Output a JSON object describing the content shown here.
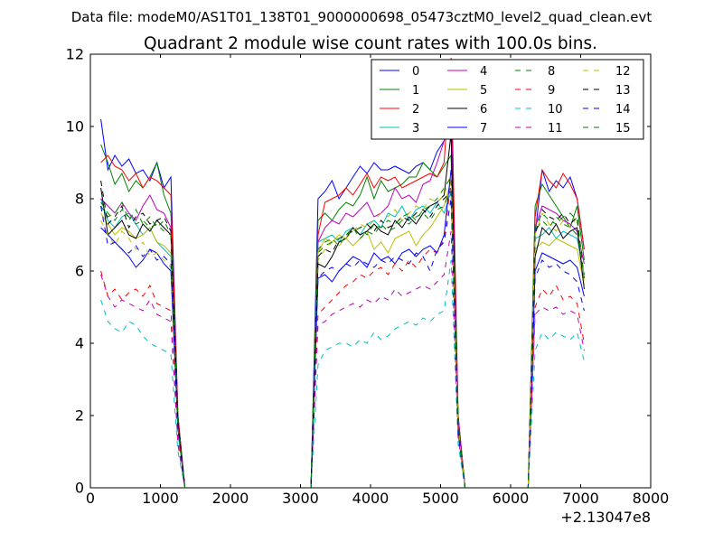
{
  "suptitle": "Data file: modeM0/AS1T01_138T01_9000000698_05473cztM0_level2_quad_clean.evt",
  "chart_data": {
    "type": "line",
    "title": "Quadrant 2 module wise count rates with 100.0s bins.",
    "xlabel": "",
    "ylabel": "",
    "xlim": [
      0,
      8000
    ],
    "ylim": [
      0,
      12
    ],
    "x_offset_label": "+2.13047e8",
    "x_ticks": [
      0,
      1000,
      2000,
      3000,
      4000,
      5000,
      6000,
      7000,
      8000
    ],
    "y_ticks": [
      0,
      2,
      4,
      6,
      8,
      10,
      12
    ],
    "legend_position": "top-right",
    "x": [
      150,
      250,
      350,
      450,
      550,
      650,
      750,
      850,
      950,
      1050,
      1150,
      1250,
      1350,
      1450,
      1550,
      1650,
      1750,
      1850,
      1950,
      2050,
      2150,
      2250,
      2350,
      2450,
      2550,
      2650,
      2750,
      2850,
      2950,
      3050,
      3150,
      3250,
      3350,
      3450,
      3550,
      3650,
      3750,
      3850,
      3950,
      4050,
      4150,
      4250,
      4350,
      4450,
      4550,
      4650,
      4750,
      4850,
      4950,
      5050,
      5150,
      5250,
      5350,
      5450,
      5550,
      5650,
      5750,
      5850,
      5950,
      6050,
      6150,
      6250,
      6350,
      6450,
      6550,
      6650,
      6750,
      6850,
      6950,
      7050
    ],
    "series": [
      {
        "name": "0",
        "color": "#0000ff",
        "style": "solid",
        "values": [
          10.2,
          8.8,
          9.2,
          8.9,
          9.1,
          8.7,
          8.8,
          8.5,
          9.0,
          8.3,
          8.6,
          2.0,
          0,
          0,
          0,
          0,
          0,
          0,
          0,
          0,
          0,
          0,
          0,
          0,
          0,
          0,
          0,
          0,
          0,
          0,
          0,
          8.0,
          8.2,
          8.5,
          8.0,
          8.3,
          8.6,
          8.9,
          8.7,
          9.0,
          8.8,
          8.8,
          8.9,
          8.8,
          8.7,
          8.9,
          9.0,
          8.8,
          9.3,
          9.6,
          10.6,
          2.0,
          0,
          0,
          0,
          0,
          0,
          0,
          0,
          0,
          0,
          0,
          7.0,
          8.8,
          8.2,
          8.5,
          8.3,
          8.6,
          8.0,
          6.6
        ]
      },
      {
        "name": "1",
        "color": "#008000",
        "style": "solid",
        "values": [
          9.5,
          9.0,
          8.4,
          8.7,
          8.2,
          8.5,
          8.3,
          8.6,
          9.0,
          8.1,
          7.6,
          1.8,
          0,
          0,
          0,
          0,
          0,
          0,
          0,
          0,
          0,
          0,
          0,
          0,
          0,
          0,
          0,
          0,
          0,
          0,
          0,
          7.4,
          7.6,
          7.4,
          7.7,
          7.9,
          7.8,
          8.1,
          8.6,
          8.0,
          8.5,
          8.2,
          8.3,
          8.4,
          8.6,
          8.6,
          9.0,
          8.8,
          8.6,
          8.9,
          9.2,
          1.9,
          0,
          0,
          0,
          0,
          0,
          0,
          0,
          0,
          0,
          0,
          7.8,
          8.4,
          8.1,
          7.8,
          7.5,
          7.2,
          7.8,
          6.3
        ]
      },
      {
        "name": "2",
        "color": "#ff0000",
        "style": "solid",
        "values": [
          9.0,
          9.2,
          8.9,
          8.8,
          8.5,
          8.7,
          8.3,
          8.6,
          8.5,
          8.3,
          8.1,
          2.0,
          0,
          0,
          0,
          0,
          0,
          0,
          0,
          0,
          0,
          0,
          0,
          0,
          0,
          0,
          0,
          0,
          0,
          0,
          0,
          7.0,
          7.9,
          8.0,
          8.1,
          8.3,
          8.1,
          8.4,
          8.7,
          8.3,
          8.6,
          8.5,
          8.6,
          8.3,
          8.4,
          8.5,
          8.6,
          8.7,
          8.6,
          9.0,
          11.9,
          2.0,
          0,
          0,
          0,
          0,
          0,
          0,
          0,
          0,
          0,
          0,
          7.5,
          8.8,
          8.5,
          8.3,
          8.7,
          8.4,
          8.0,
          6.6
        ]
      },
      {
        "name": "3",
        "color": "#00bfbf",
        "style": "solid",
        "values": [
          8.0,
          7.4,
          7.2,
          7.5,
          7.6,
          7.3,
          7.0,
          7.2,
          6.8,
          6.6,
          6.4,
          1.7,
          0,
          0,
          0,
          0,
          0,
          0,
          0,
          0,
          0,
          0,
          0,
          0,
          0,
          0,
          0,
          0,
          0,
          0,
          0,
          6.8,
          6.9,
          7.0,
          6.8,
          7.1,
          7.2,
          7.0,
          7.3,
          7.4,
          7.2,
          7.6,
          7.5,
          7.8,
          7.4,
          7.7,
          7.8,
          7.6,
          7.9,
          7.6,
          8.2,
          1.7,
          0,
          0,
          0,
          0,
          0,
          0,
          0,
          0,
          0,
          0,
          6.9,
          7.0,
          7.2,
          6.9,
          7.1,
          7.0,
          6.9,
          5.9
        ]
      },
      {
        "name": "4",
        "color": "#bf00bf",
        "style": "solid",
        "values": [
          8.0,
          7.8,
          7.6,
          7.9,
          7.6,
          7.4,
          7.8,
          8.1,
          7.7,
          7.6,
          7.2,
          1.8,
          0,
          0,
          0,
          0,
          0,
          0,
          0,
          0,
          0,
          0,
          0,
          0,
          0,
          0,
          0,
          0,
          0,
          0,
          0,
          6.8,
          7.2,
          7.4,
          7.3,
          7.6,
          7.5,
          7.7,
          7.9,
          7.5,
          7.6,
          7.8,
          8.3,
          8.0,
          8.1,
          7.9,
          8.4,
          8.5,
          9.0,
          9.6,
          10.4,
          2.0,
          0,
          0,
          0,
          0,
          0,
          0,
          0,
          0,
          0,
          0,
          7.2,
          7.8,
          7.7,
          7.6,
          7.4,
          7.3,
          7.1,
          6.2
        ]
      },
      {
        "name": "5",
        "color": "#bfbf00",
        "style": "solid",
        "values": [
          7.6,
          7.3,
          7.0,
          7.2,
          7.1,
          6.9,
          7.0,
          7.2,
          6.8,
          6.7,
          6.5,
          1.7,
          0,
          0,
          0,
          0,
          0,
          0,
          0,
          0,
          0,
          0,
          0,
          0,
          0,
          0,
          0,
          0,
          0,
          0,
          0,
          6.5,
          6.9,
          6.8,
          7.0,
          6.9,
          6.7,
          6.9,
          7.1,
          6.6,
          6.8,
          6.5,
          6.9,
          7.0,
          7.1,
          6.7,
          7.0,
          7.2,
          7.5,
          7.8,
          8.5,
          1.6,
          0,
          0,
          0,
          0,
          0,
          0,
          0,
          0,
          0,
          0,
          6.6,
          6.8,
          6.7,
          6.9,
          6.8,
          6.7,
          6.6,
          5.6
        ]
      },
      {
        "name": "6",
        "color": "#000000",
        "style": "solid",
        "values": [
          8.3,
          7.0,
          7.2,
          7.4,
          7.0,
          6.9,
          7.3,
          7.1,
          7.4,
          7.2,
          7.0,
          1.8,
          0,
          0,
          0,
          0,
          0,
          0,
          0,
          0,
          0,
          0,
          0,
          0,
          0,
          0,
          0,
          0,
          0,
          0,
          0,
          6.2,
          6.1,
          6.4,
          6.8,
          6.9,
          7.2,
          7.0,
          7.1,
          7.3,
          7.1,
          7.0,
          7.4,
          7.2,
          7.5,
          7.3,
          7.6,
          7.8,
          7.9,
          8.1,
          9.8,
          1.8,
          0,
          0,
          0,
          0,
          0,
          0,
          0,
          0,
          0,
          0,
          6.4,
          7.2,
          7.0,
          7.3,
          6.9,
          7.1,
          7.2,
          5.5
        ]
      },
      {
        "name": "7",
        "color": "#0000ff",
        "style": "solid",
        "values": [
          7.2,
          7.0,
          6.8,
          6.6,
          6.4,
          6.1,
          6.3,
          6.6,
          6.5,
          6.2,
          6.0,
          1.6,
          0,
          0,
          0,
          0,
          0,
          0,
          0,
          0,
          0,
          0,
          0,
          0,
          0,
          0,
          0,
          0,
          0,
          0,
          0,
          5.8,
          5.9,
          5.7,
          6.0,
          6.2,
          6.4,
          6.3,
          6.1,
          6.5,
          6.3,
          6.4,
          6.2,
          6.5,
          6.6,
          6.4,
          6.6,
          6.7,
          6.5,
          7.0,
          8.8,
          1.6,
          0,
          0,
          0,
          0,
          0,
          0,
          0,
          0,
          0,
          0,
          6.0,
          6.5,
          6.4,
          6.3,
          6.2,
          6.3,
          6.1,
          5.3
        ]
      },
      {
        "name": "8",
        "color": "#008000",
        "style": "dashed",
        "values": [
          7.8,
          7.5,
          7.6,
          7.9,
          7.4,
          7.7,
          7.3,
          7.5,
          7.2,
          7.4,
          7.0,
          1.7,
          0,
          0,
          0,
          0,
          0,
          0,
          0,
          0,
          0,
          0,
          0,
          0,
          0,
          0,
          0,
          0,
          0,
          0,
          0,
          6.6,
          6.8,
          6.9,
          6.7,
          7.0,
          7.2,
          6.9,
          7.1,
          7.0,
          7.3,
          7.1,
          7.2,
          7.4,
          7.3,
          7.5,
          7.6,
          7.4,
          7.7,
          7.8,
          8.3,
          1.7,
          0,
          0,
          0,
          0,
          0,
          0,
          0,
          0,
          0,
          0,
          7.1,
          7.4,
          7.2,
          7.5,
          7.3,
          7.2,
          7.0,
          5.9
        ]
      },
      {
        "name": "9",
        "color": "#ff0000",
        "style": "dashed",
        "values": [
          6.0,
          5.3,
          5.5,
          5.2,
          5.4,
          5.5,
          5.3,
          5.6,
          5.1,
          5.0,
          4.9,
          1.3,
          0,
          0,
          0,
          0,
          0,
          0,
          0,
          0,
          0,
          0,
          0,
          0,
          0,
          0,
          0,
          0,
          0,
          0,
          0,
          4.8,
          5.0,
          5.2,
          5.4,
          5.6,
          5.7,
          5.9,
          5.8,
          6.0,
          6.1,
          5.9,
          6.2,
          6.0,
          6.3,
          6.1,
          6.4,
          6.6,
          6.5,
          6.9,
          8.5,
          1.5,
          0,
          0,
          0,
          0,
          0,
          0,
          0,
          0,
          0,
          0,
          5.0,
          5.5,
          5.3,
          5.6,
          5.2,
          5.3,
          5.1,
          4.0
        ]
      },
      {
        "name": "10",
        "color": "#00bfbf",
        "style": "dashed",
        "values": [
          5.2,
          4.6,
          4.4,
          4.3,
          4.6,
          4.5,
          4.2,
          4.0,
          3.9,
          3.8,
          3.7,
          1.0,
          0,
          0,
          0,
          0,
          0,
          0,
          0,
          0,
          0,
          0,
          0,
          0,
          0,
          0,
          0,
          0,
          0,
          0,
          0,
          3.4,
          3.8,
          3.9,
          4.0,
          4.0,
          3.9,
          4.1,
          4.0,
          4.3,
          4.1,
          4.2,
          4.4,
          4.5,
          4.6,
          4.5,
          4.7,
          4.6,
          4.8,
          4.9,
          6.3,
          1.2,
          0,
          0,
          0,
          0,
          0,
          0,
          0,
          0,
          0,
          0,
          3.8,
          4.3,
          4.1,
          4.3,
          4.2,
          4.1,
          4.3,
          3.5
        ]
      },
      {
        "name": "11",
        "color": "#bf00bf",
        "style": "dashed",
        "values": [
          5.9,
          5.3,
          5.0,
          5.2,
          5.1,
          5.0,
          4.9,
          5.2,
          4.8,
          4.7,
          4.6,
          1.2,
          0,
          0,
          0,
          0,
          0,
          0,
          0,
          0,
          0,
          0,
          0,
          0,
          0,
          0,
          0,
          0,
          0,
          0,
          0,
          4.5,
          4.6,
          4.8,
          4.9,
          5.0,
          5.1,
          5.0,
          5.2,
          5.1,
          5.3,
          5.2,
          5.5,
          5.3,
          5.4,
          5.5,
          5.6,
          5.5,
          5.7,
          5.9,
          7.1,
          1.4,
          0,
          0,
          0,
          0,
          0,
          0,
          0,
          0,
          0,
          0,
          4.8,
          5.0,
          4.9,
          5.0,
          4.8,
          4.9,
          4.8,
          3.8
        ]
      },
      {
        "name": "12",
        "color": "#bfbf00",
        "style": "dashed",
        "values": [
          7.4,
          7.0,
          6.7,
          7.1,
          6.9,
          6.6,
          6.8,
          6.4,
          6.5,
          6.3,
          6.1,
          1.6,
          0,
          0,
          0,
          0,
          0,
          0,
          0,
          0,
          0,
          0,
          0,
          0,
          0,
          0,
          0,
          0,
          0,
          0,
          0,
          6.3,
          6.6,
          6.8,
          6.7,
          6.9,
          7.1,
          7.3,
          7.2,
          7.4,
          7.6,
          7.5,
          7.7,
          7.4,
          7.6,
          7.8,
          7.7,
          8.0,
          7.9,
          8.1,
          8.7,
          1.7,
          0,
          0,
          0,
          0,
          0,
          0,
          0,
          0,
          0,
          0,
          7.0,
          7.6,
          7.3,
          7.1,
          7.4,
          7.2,
          7.5,
          5.7
        ]
      },
      {
        "name": "13",
        "color": "#000000",
        "style": "dashed",
        "values": [
          8.5,
          7.3,
          7.5,
          7.8,
          7.2,
          7.5,
          7.6,
          7.3,
          7.4,
          7.5,
          7.1,
          1.8,
          0,
          0,
          0,
          0,
          0,
          0,
          0,
          0,
          0,
          0,
          0,
          0,
          0,
          0,
          0,
          0,
          0,
          0,
          0,
          6.4,
          6.6,
          6.5,
          6.9,
          7.0,
          7.1,
          7.2,
          7.3,
          7.1,
          7.4,
          7.2,
          7.3,
          7.5,
          7.4,
          7.6,
          7.7,
          7.5,
          7.8,
          8.0,
          8.2,
          1.8,
          0,
          0,
          0,
          0,
          0,
          0,
          0,
          0,
          0,
          0,
          7.0,
          7.7,
          7.5,
          7.4,
          7.6,
          7.3,
          7.5,
          5.8
        ]
      },
      {
        "name": "14",
        "color": "#0000ff",
        "style": "dashed",
        "values": [
          7.8,
          6.7,
          6.8,
          6.6,
          6.5,
          6.7,
          6.4,
          6.6,
          6.3,
          6.4,
          6.2,
          1.6,
          0,
          0,
          0,
          0,
          0,
          0,
          0,
          0,
          0,
          0,
          0,
          0,
          0,
          0,
          0,
          0,
          0,
          0,
          0,
          5.8,
          6.0,
          6.1,
          6.0,
          6.2,
          6.1,
          6.3,
          6.2,
          6.1,
          6.3,
          6.2,
          6.4,
          6.3,
          6.2,
          6.5,
          6.4,
          6.0,
          6.6,
          6.8,
          8.0,
          1.6,
          0,
          0,
          0,
          0,
          0,
          0,
          0,
          0,
          0,
          0,
          5.8,
          6.3,
          6.1,
          6.2,
          6.0,
          5.9,
          5.7,
          4.9
        ]
      },
      {
        "name": "15",
        "color": "#008000",
        "style": "dashed",
        "values": [
          7.9,
          7.6,
          7.4,
          7.7,
          7.5,
          7.3,
          7.4,
          7.2,
          7.3,
          7.1,
          7.0,
          1.7,
          0,
          0,
          0,
          0,
          0,
          0,
          0,
          0,
          0,
          0,
          0,
          0,
          0,
          0,
          0,
          0,
          0,
          0,
          0,
          6.5,
          6.7,
          6.8,
          6.9,
          7.0,
          7.1,
          7.2,
          7.0,
          7.3,
          7.2,
          7.4,
          7.3,
          7.5,
          7.6,
          7.4,
          7.7,
          7.8,
          8.0,
          8.3,
          8.6,
          1.8,
          0,
          0,
          0,
          0,
          0,
          0,
          0,
          0,
          0,
          0,
          7.2,
          7.6,
          7.4,
          7.3,
          7.5,
          7.6,
          7.4,
          5.8
        ]
      }
    ]
  }
}
